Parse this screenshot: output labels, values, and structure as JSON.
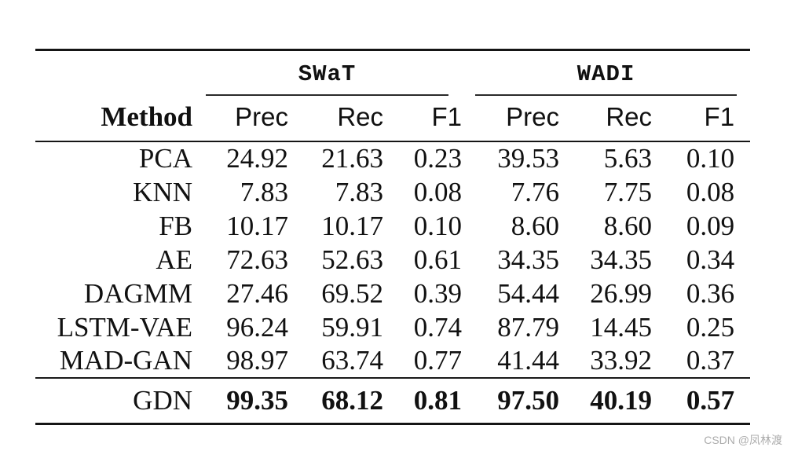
{
  "page": {
    "watermark": "CSDN @凤林渡"
  },
  "table": {
    "group_headers": [
      {
        "label": "SWaT"
      },
      {
        "label": "WADI"
      }
    ],
    "method_header": "Method",
    "metric_headers": [
      "Prec",
      "Rec",
      "F1",
      "Prec",
      "Rec",
      "F1"
    ],
    "rows": [
      {
        "method": "PCA",
        "values": [
          "24.92",
          "21.63",
          "0.23",
          "39.53",
          "5.63",
          "0.10"
        ]
      },
      {
        "method": "KNN",
        "values": [
          "7.83",
          "7.83",
          "0.08",
          "7.76",
          "7.75",
          "0.08"
        ]
      },
      {
        "method": "FB",
        "values": [
          "10.17",
          "10.17",
          "0.10",
          "8.60",
          "8.60",
          "0.09"
        ]
      },
      {
        "method": "AE",
        "values": [
          "72.63",
          "52.63",
          "0.61",
          "34.35",
          "34.35",
          "0.34"
        ]
      },
      {
        "method": "DAGMM",
        "values": [
          "27.46",
          "69.52",
          "0.39",
          "54.44",
          "26.99",
          "0.36"
        ]
      },
      {
        "method": "LSTM-VAE",
        "values": [
          "96.24",
          "59.91",
          "0.74",
          "87.79",
          "14.45",
          "0.25"
        ]
      },
      {
        "method": "MAD-GAN",
        "values": [
          "98.97",
          "63.74",
          "0.77",
          "41.44",
          "33.92",
          "0.37"
        ]
      }
    ],
    "footer_row": {
      "method": "GDN",
      "values": [
        "99.35",
        "68.12",
        "0.81",
        "97.50",
        "40.19",
        "0.57"
      ]
    }
  },
  "colors": {
    "text": "#111111",
    "rule": "#151515",
    "watermark_gray": "#acacac"
  }
}
